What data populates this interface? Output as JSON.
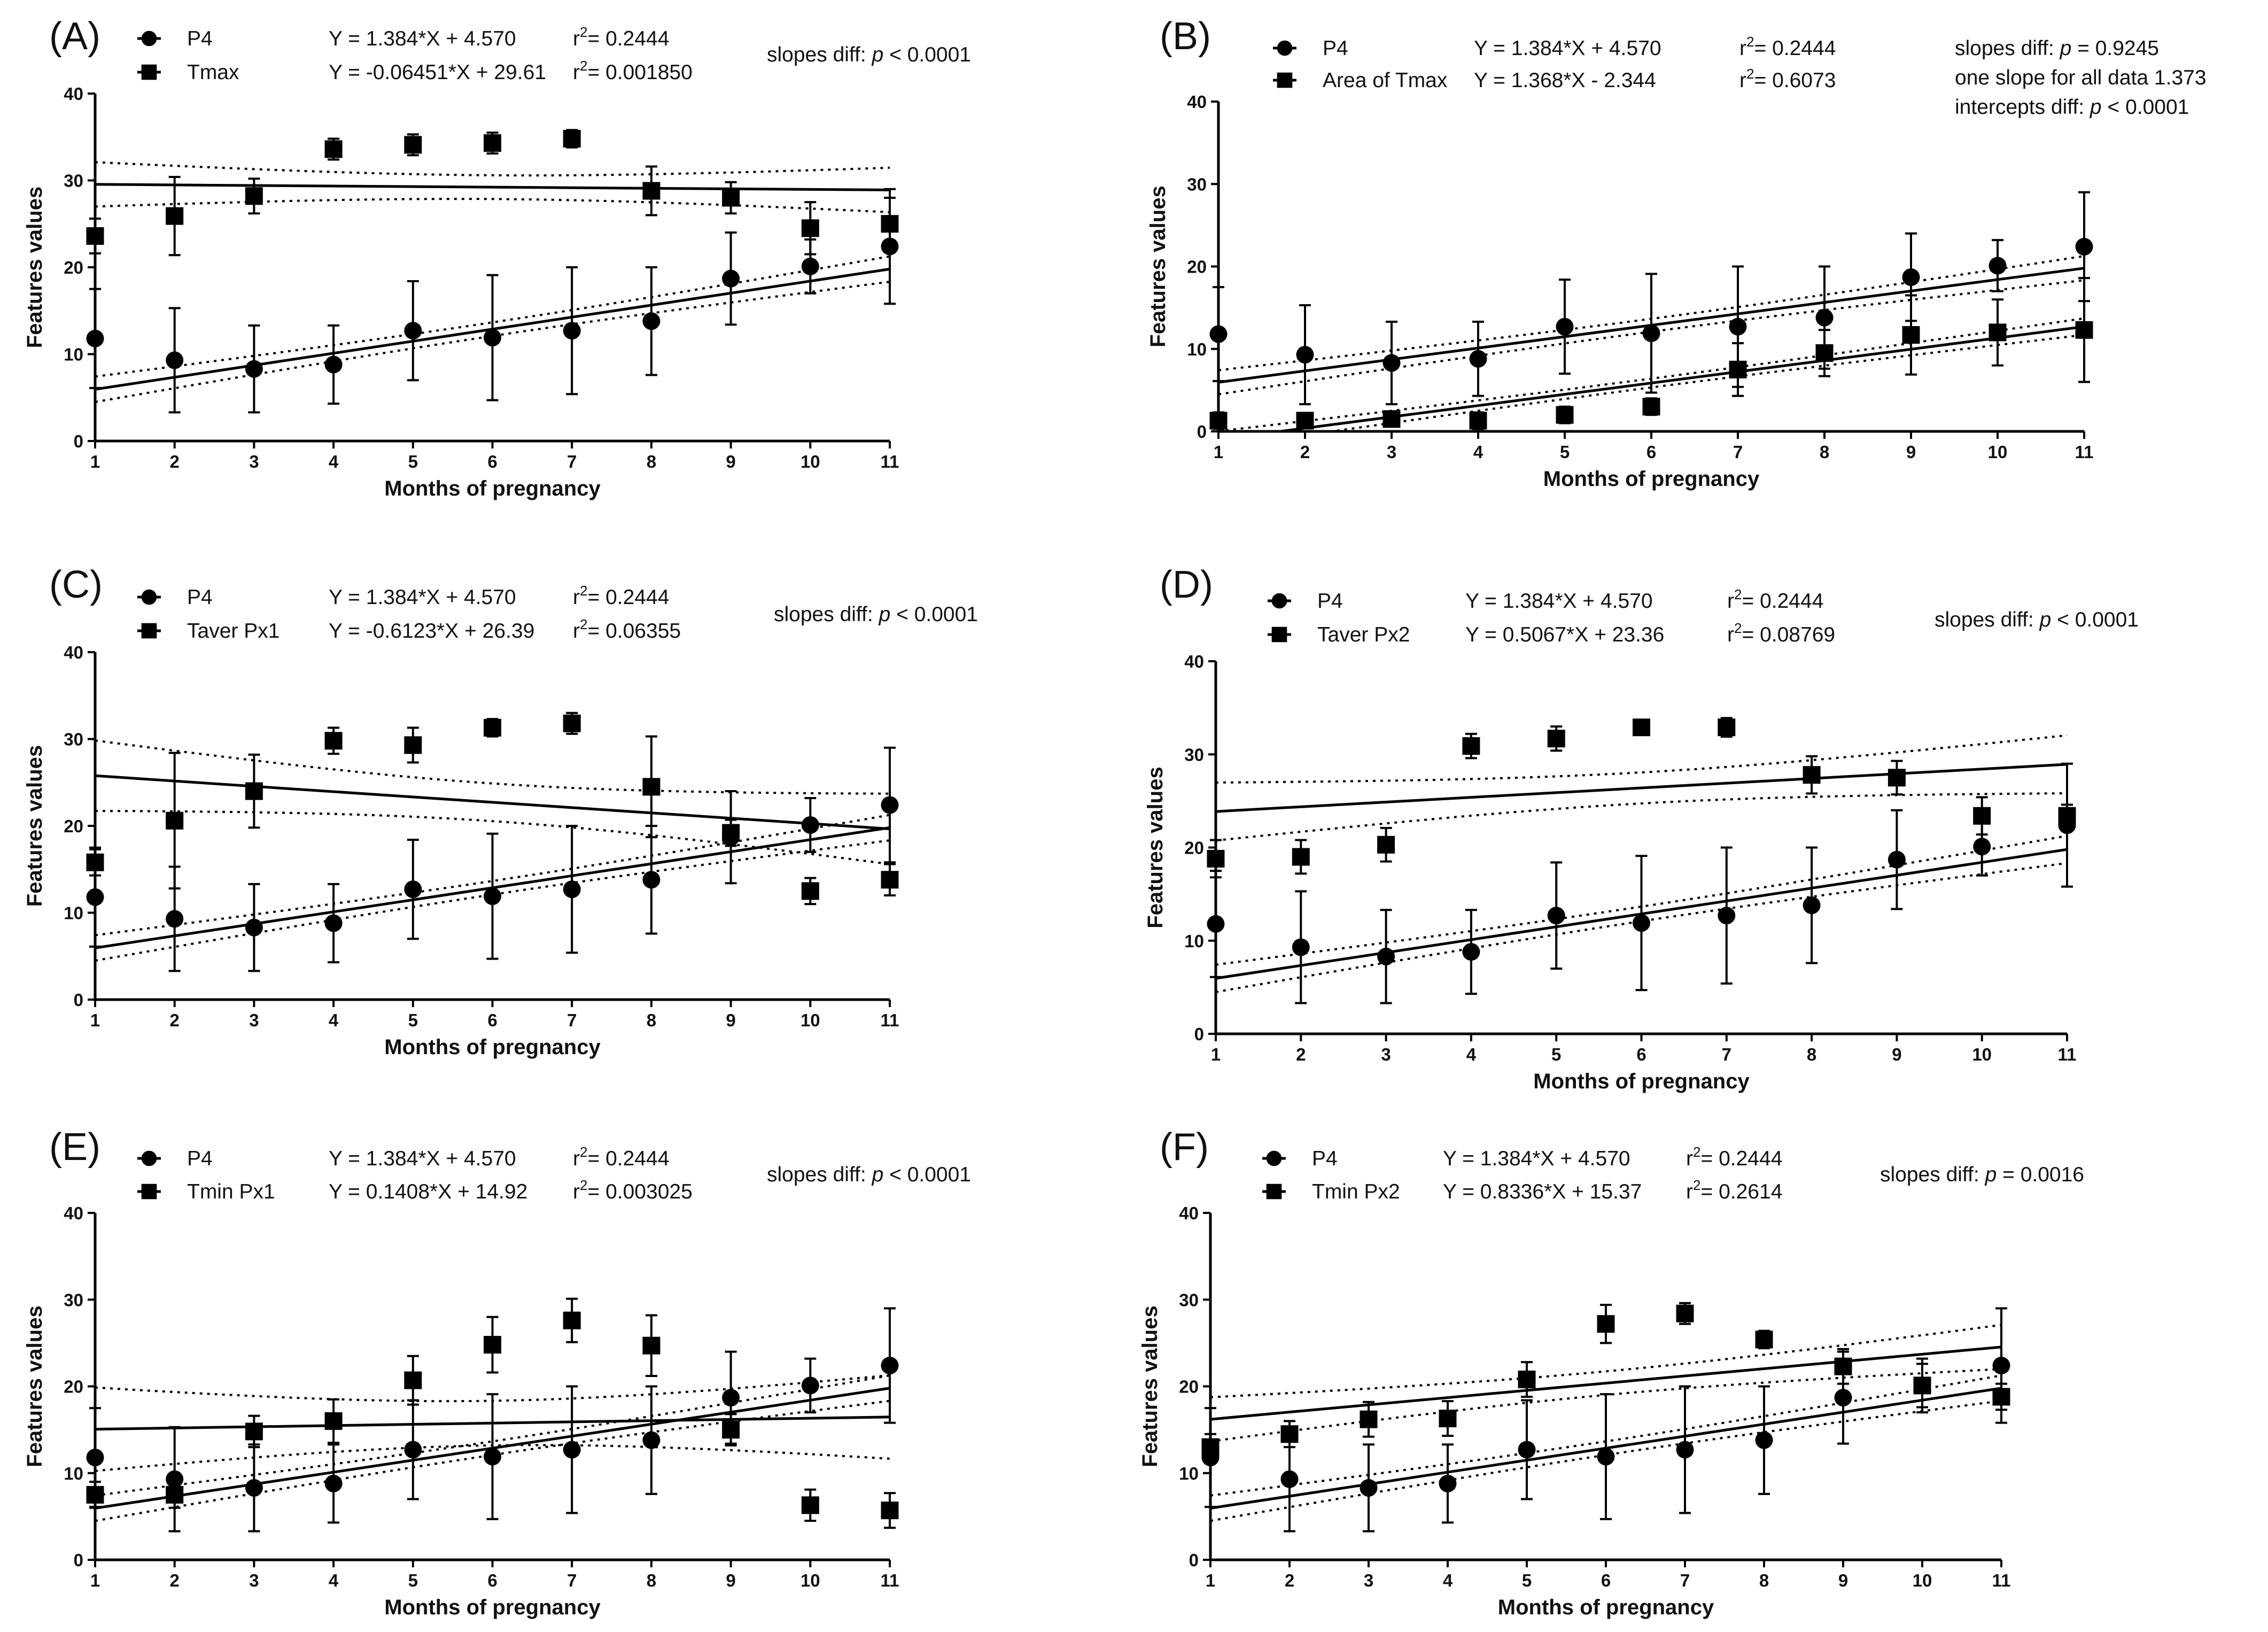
{
  "chart_data": [
    {
      "panel": "(A)",
      "type": "scatter",
      "xlabel": "Months of pregnancy",
      "ylabel": "Features values",
      "xlim": [
        1,
        11
      ],
      "ylim": [
        0,
        40
      ],
      "x_ticks": [
        1,
        2,
        3,
        4,
        5,
        6,
        7,
        8,
        9,
        10,
        11
      ],
      "y_ticks": [
        0,
        10,
        20,
        30,
        40
      ],
      "x": [
        1,
        2,
        3,
        4,
        5,
        6,
        7,
        8,
        9,
        10,
        11
      ],
      "series": [
        {
          "name": "P4",
          "marker": "circle",
          "equation": "Y = 1.384*X + 4.570",
          "r2": "0.2444",
          "slope": 1.384,
          "intercept": 4.57,
          "values": [
            11.8,
            9.3,
            8.3,
            8.8,
            12.7,
            11.9,
            12.7,
            13.8,
            18.7,
            20.1,
            22.4
          ],
          "error": [
            5.7,
            6.0,
            5.0,
            4.5,
            5.7,
            7.2,
            7.3,
            6.2,
            5.3,
            3.1,
            6.6
          ]
        },
        {
          "name": "Tmax",
          "marker": "square",
          "equation": "Y = -0.06451*X + 29.61",
          "r2": "0.001850",
          "slope": -0.06451,
          "intercept": 29.61,
          "values": [
            23.6,
            25.9,
            28.2,
            33.6,
            34.1,
            34.3,
            34.8,
            28.8,
            28.0,
            24.5,
            25.0
          ],
          "error": [
            2.0,
            4.5,
            2.0,
            1.2,
            1.2,
            1.2,
            1.0,
            2.8,
            1.8,
            3.0,
            3.0
          ]
        }
      ],
      "annotation": {
        "prefix": "slopes diff: ",
        "p_symbol": "p",
        "value": " < 0.0001"
      }
    },
    {
      "panel": "(B)",
      "type": "scatter",
      "xlabel": "Months of pregnancy",
      "ylabel": "Features values",
      "xlim": [
        1,
        11
      ],
      "ylim": [
        0,
        40
      ],
      "x_ticks": [
        1,
        2,
        3,
        4,
        5,
        6,
        7,
        8,
        9,
        10,
        11
      ],
      "y_ticks": [
        0,
        10,
        20,
        30,
        40
      ],
      "x": [
        1,
        2,
        3,
        4,
        5,
        6,
        7,
        8,
        9,
        10,
        11
      ],
      "series": [
        {
          "name": "P4",
          "marker": "circle",
          "equation": "Y = 1.384*X + 4.570",
          "r2": "0.2444",
          "slope": 1.384,
          "intercept": 4.57,
          "values": [
            11.8,
            9.3,
            8.3,
            8.8,
            12.7,
            11.9,
            12.7,
            13.8,
            18.7,
            20.1,
            22.4
          ],
          "error": [
            5.7,
            6.0,
            5.0,
            4.5,
            5.7,
            7.2,
            7.3,
            6.2,
            5.3,
            3.1,
            6.6
          ]
        },
        {
          "name": "Area of Tmax",
          "marker": "square",
          "equation": "Y = 1.368*X - 2.344",
          "r2": "0.6073",
          "slope": 1.368,
          "intercept": -2.344,
          "values": [
            1.3,
            1.3,
            1.5,
            1.3,
            2.0,
            3.0,
            7.5,
            9.5,
            11.7,
            12.0,
            12.3
          ],
          "error": [
            1.0,
            0.8,
            0.8,
            1.0,
            1.0,
            1.0,
            3.2,
            2.8,
            4.8,
            4.0,
            6.3
          ]
        }
      ],
      "annotation_lines": [
        {
          "prefix": "slopes diff: ",
          "p_symbol": "p",
          "value": " = 0.9245"
        },
        {
          "prefix": " one slope for all data  1.373",
          "p_symbol": "",
          "value": ""
        },
        {
          "prefix": "intercepts diff: ",
          "p_symbol": "p",
          "value": " < 0.0001"
        }
      ]
    },
    {
      "panel": "(C)",
      "type": "scatter",
      "xlabel": "Months of pregnancy",
      "ylabel": "Features values",
      "xlim": [
        1,
        11
      ],
      "ylim": [
        0,
        40
      ],
      "x_ticks": [
        1,
        2,
        3,
        4,
        5,
        6,
        7,
        8,
        9,
        10,
        11
      ],
      "y_ticks": [
        0,
        10,
        20,
        30,
        40
      ],
      "x": [
        1,
        2,
        3,
        4,
        5,
        6,
        7,
        8,
        9,
        10,
        11
      ],
      "series": [
        {
          "name": "P4",
          "marker": "circle",
          "equation": "Y = 1.384*X + 4.570",
          "r2": "0.2444",
          "slope": 1.384,
          "intercept": 4.57,
          "values": [
            11.8,
            9.3,
            8.3,
            8.8,
            12.7,
            11.9,
            12.7,
            13.8,
            18.7,
            20.1,
            22.4
          ],
          "error": [
            5.7,
            6.0,
            5.0,
            4.5,
            5.7,
            7.2,
            7.3,
            6.2,
            5.3,
            3.1,
            6.6
          ]
        },
        {
          "name": "Taver Px1",
          "marker": "square",
          "equation": "Y = -0.6123*X + 26.39",
          "r2": "0.06355",
          "slope": -0.6123,
          "intercept": 26.39,
          "values": [
            15.8,
            20.6,
            24.0,
            29.8,
            29.3,
            31.3,
            31.8,
            24.5,
            19.2,
            12.5,
            13.8
          ],
          "error": [
            1.5,
            7.8,
            4.2,
            1.5,
            2.0,
            1.0,
            1.2,
            5.8,
            1.5,
            1.5,
            1.8
          ]
        }
      ],
      "annotation": {
        "prefix": "slopes diff: ",
        "p_symbol": "p",
        "value": " < 0.0001"
      }
    },
    {
      "panel": "(D)",
      "type": "scatter",
      "xlabel": "Months of pregnancy",
      "ylabel": "Features values",
      "xlim": [
        1,
        11
      ],
      "ylim": [
        0,
        40
      ],
      "x_ticks": [
        1,
        2,
        3,
        4,
        5,
        6,
        7,
        8,
        9,
        10,
        11
      ],
      "y_ticks": [
        0,
        10,
        20,
        30,
        40
      ],
      "x": [
        1,
        2,
        3,
        4,
        5,
        6,
        7,
        8,
        9,
        10,
        11
      ],
      "series": [
        {
          "name": "P4",
          "marker": "circle",
          "equation": "Y = 1.384*X + 4.570",
          "r2": "0.2444",
          "slope": 1.384,
          "intercept": 4.57,
          "values": [
            11.8,
            9.3,
            8.3,
            8.8,
            12.7,
            11.9,
            12.7,
            13.8,
            18.7,
            20.1,
            22.4
          ],
          "error": [
            5.7,
            6.0,
            5.0,
            4.5,
            5.7,
            7.2,
            7.3,
            6.2,
            5.3,
            3.1,
            6.6
          ]
        },
        {
          "name": "Taver Px2",
          "marker": "square",
          "equation": "Y = 0.5067*X + 23.36",
          "r2": "0.08769",
          "slope": 0.5067,
          "intercept": 23.36,
          "values": [
            18.8,
            19.0,
            20.3,
            30.9,
            31.7,
            32.9,
            32.9,
            27.8,
            27.5,
            23.4,
            23.4
          ],
          "error": [
            2.0,
            1.8,
            1.8,
            1.3,
            1.3,
            0.8,
            1.0,
            2.0,
            1.8,
            2.0,
            1.2
          ]
        }
      ],
      "annotation": {
        "prefix": "slopes diff: ",
        "p_symbol": "p",
        "value": " < 0.0001"
      }
    },
    {
      "panel": "(E)",
      "type": "scatter",
      "xlabel": "Months of pregnancy",
      "ylabel": "Features values",
      "xlim": [
        1,
        11
      ],
      "ylim": [
        0,
        40
      ],
      "x_ticks": [
        1,
        2,
        3,
        4,
        5,
        6,
        7,
        8,
        9,
        10,
        11
      ],
      "y_ticks": [
        0,
        10,
        20,
        30,
        40
      ],
      "x": [
        1,
        2,
        3,
        4,
        5,
        6,
        7,
        8,
        9,
        10,
        11
      ],
      "series": [
        {
          "name": "P4",
          "marker": "circle",
          "equation": "Y = 1.384*X + 4.570",
          "r2": "0.2444",
          "slope": 1.384,
          "intercept": 4.57,
          "values": [
            11.8,
            9.3,
            8.3,
            8.8,
            12.7,
            11.9,
            12.7,
            13.8,
            18.7,
            20.1,
            22.4
          ],
          "error": [
            5.7,
            6.0,
            5.0,
            4.5,
            5.7,
            7.2,
            7.3,
            6.2,
            5.3,
            3.1,
            6.6
          ]
        },
        {
          "name": "Tmin Px1",
          "marker": "square",
          "equation": "Y = 0.1408*X + 14.92",
          "r2": "0.003025",
          "slope": 0.1408,
          "intercept": 14.92,
          "values": [
            7.5,
            7.5,
            14.8,
            16.0,
            20.7,
            24.8,
            27.6,
            24.7,
            15.0,
            6.3,
            5.7
          ],
          "error": [
            1.5,
            1.5,
            1.8,
            2.5,
            2.8,
            3.2,
            2.5,
            3.5,
            1.8,
            1.8,
            2.0
          ]
        }
      ],
      "annotation": {
        "prefix": "slopes diff: ",
        "p_symbol": "p",
        "value": " < 0.0001"
      }
    },
    {
      "panel": "(F)",
      "type": "scatter",
      "xlabel": "Months of pregnancy",
      "ylabel": "Features values",
      "xlim": [
        1,
        11
      ],
      "ylim": [
        0,
        40
      ],
      "x_ticks": [
        1,
        2,
        3,
        4,
        5,
        6,
        7,
        8,
        9,
        10,
        11
      ],
      "y_ticks": [
        0,
        10,
        20,
        30,
        40
      ],
      "x": [
        1,
        2,
        3,
        4,
        5,
        6,
        7,
        8,
        9,
        10,
        11
      ],
      "series": [
        {
          "name": "P4",
          "marker": "circle",
          "equation": "Y = 1.384*X + 4.570",
          "r2": "0.2444",
          "slope": 1.384,
          "intercept": 4.57,
          "values": [
            11.8,
            9.3,
            8.3,
            8.8,
            12.7,
            11.9,
            12.7,
            13.8,
            18.7,
            20.1,
            22.4
          ],
          "error": [
            5.7,
            6.0,
            5.0,
            4.5,
            5.7,
            7.2,
            7.3,
            6.2,
            5.3,
            3.1,
            6.6
          ]
        },
        {
          "name": "Tmin Px2",
          "marker": "square",
          "equation": "Y = 0.8336*X + 15.37",
          "r2": "0.2614",
          "slope": 0.8336,
          "intercept": 15.37,
          "values": [
            13.0,
            14.5,
            16.2,
            16.3,
            20.8,
            27.2,
            28.4,
            25.4,
            22.3,
            20.1,
            18.8
          ],
          "error": [
            1.5,
            1.5,
            2.0,
            2.0,
            2.0,
            2.2,
            1.2,
            1.0,
            2.0,
            2.5,
            1.5
          ]
        }
      ],
      "annotation": {
        "prefix": "slopes diff: ",
        "p_symbol": "p",
        "value": " = 0.0016"
      }
    }
  ]
}
